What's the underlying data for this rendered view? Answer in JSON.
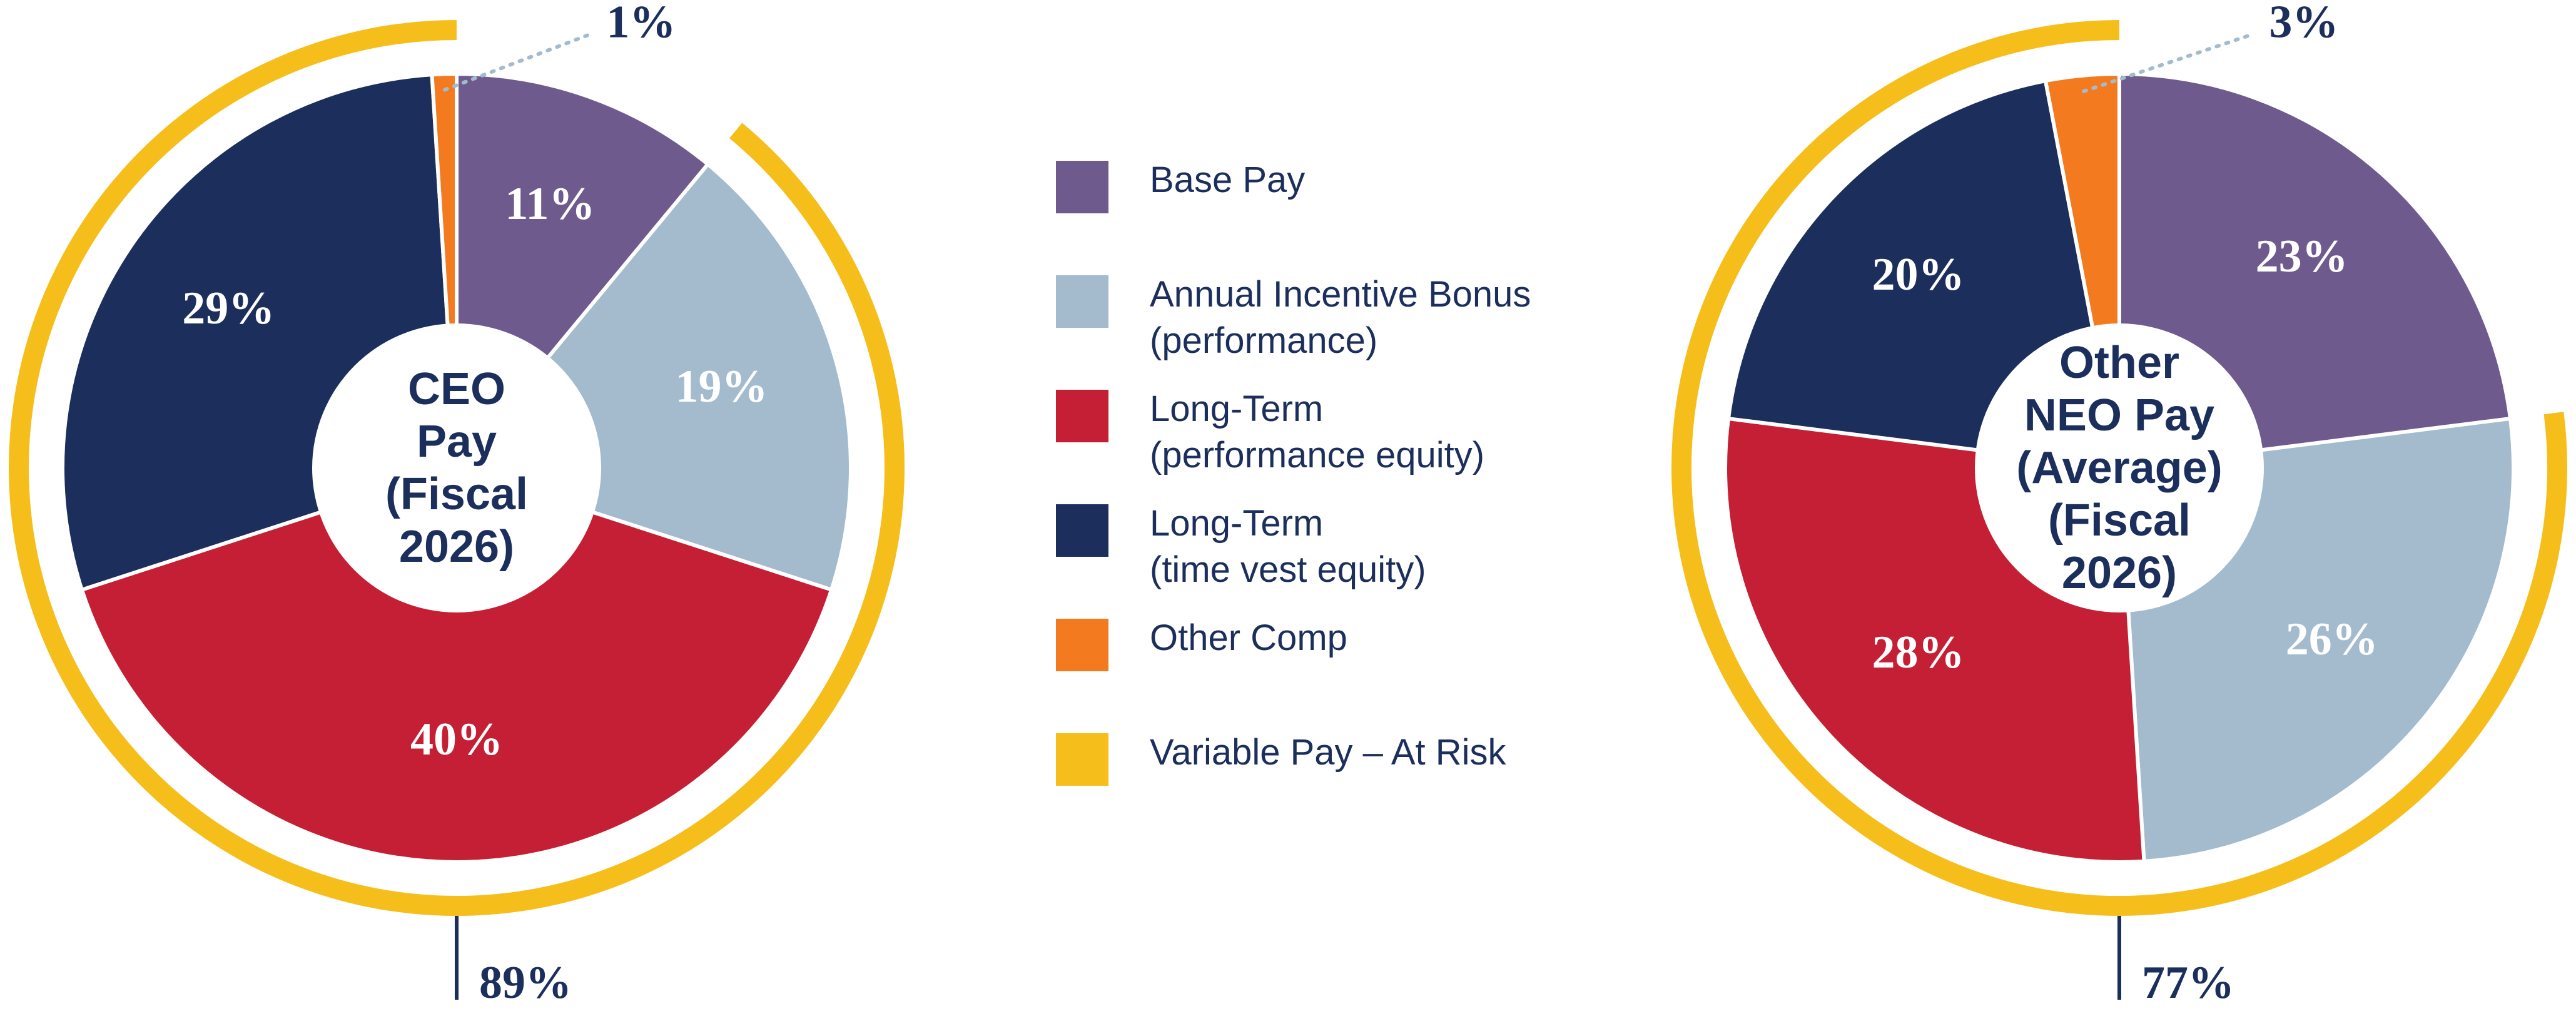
{
  "chart_data": {
    "type": "pie",
    "categories": [
      "Base Pay",
      "Annual Incentive Bonus\n(performance)",
      "Long-Term\n(performance equity)",
      "Long-Term\n(time vest equity)",
      "Other Comp"
    ],
    "colors": [
      "#6f5a8e",
      "#a3bbcc",
      "#c41f35",
      "#1c2f5c",
      "#f47a20"
    ],
    "series": [
      {
        "name": "CEO\nPay\n(Fiscal\n2026)",
        "values": [
          11,
          19,
          40,
          29,
          1
        ],
        "value_labels": [
          "11%",
          "19%",
          "40%",
          "29%",
          "1%"
        ]
      },
      {
        "name": "Other\nNEO Pay\n(Average)\n(Fiscal\n2026)",
        "values": [
          23,
          26,
          28,
          20,
          3
        ],
        "value_labels": [
          "23%",
          "26%",
          "28%",
          "20%",
          "3%"
        ]
      }
    ],
    "variable_pay": {
      "name": "Variable Pay – At Risk",
      "color": "#f6be1a",
      "values": [
        89,
        77
      ],
      "value_labels": [
        "89%",
        "77%"
      ]
    }
  }
}
